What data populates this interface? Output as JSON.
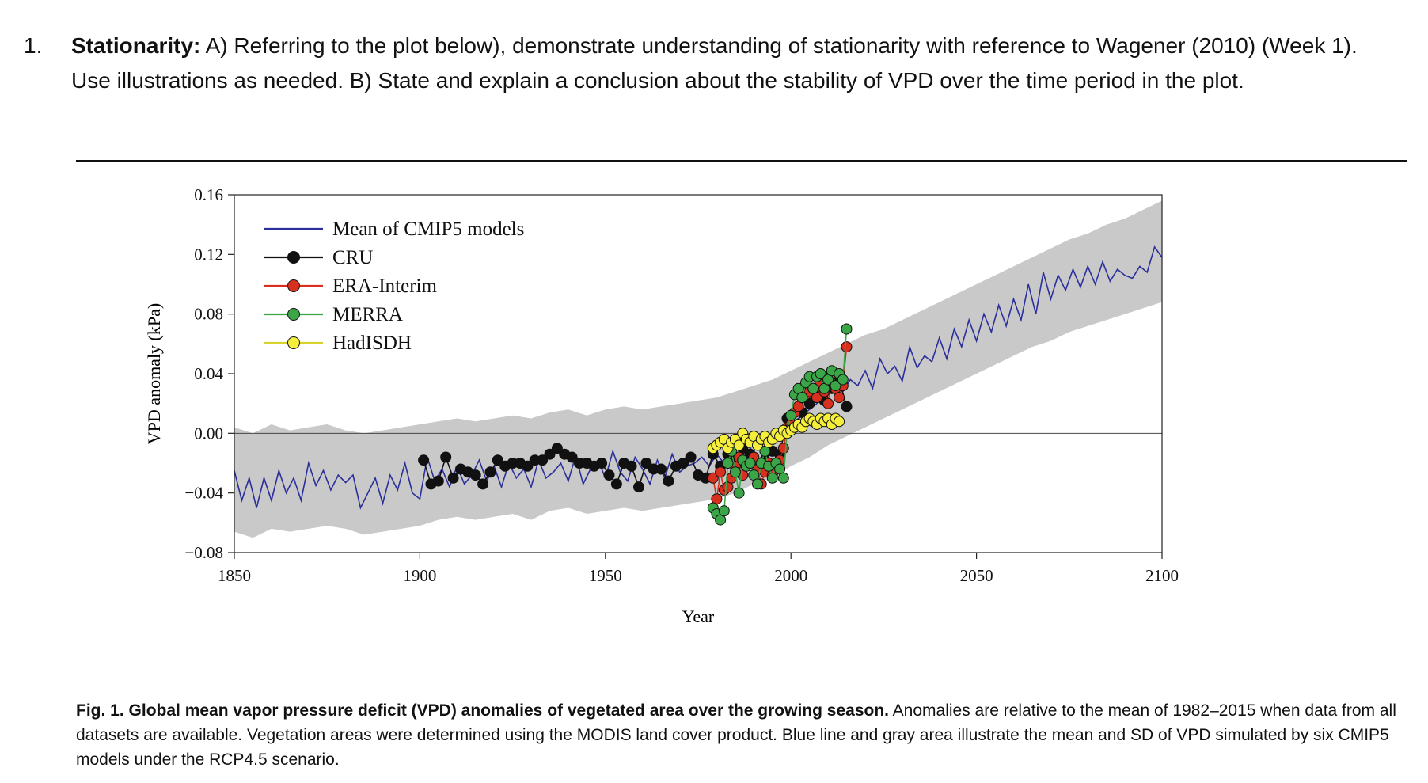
{
  "question": {
    "number": "1.",
    "heading": "Stationarity:",
    "text": " A) Referring to the plot below), demonstrate understanding of stationarity with reference to Wagener (2010) (Week 1). Use illustrations as needed. B) State and explain a conclusion about the stability of VPD over the time period in the plot."
  },
  "caption": {
    "label": "Fig. 1.",
    "title": "Global mean vapor pressure deficit (VPD) anomalies of vegetated area over the growing season.",
    "text": " Anomalies are relative to the mean of 1982–2015 when data from all datasets are available. Vegetation areas were determined using the MODIS land cover product. Blue line and gray area illustrate the mean and SD of VPD simulated by six CMIP5 models under the RCP4.5 scenario."
  },
  "colors": {
    "model_line": "#2b2f9b",
    "sd_band": "#c9c9c9",
    "cru": "#111111",
    "era": "#d7301f",
    "merra": "#3aa647",
    "hadisdh": "#f5ee3a"
  },
  "chart_data": {
    "type": "line",
    "title": "",
    "xlabel": "Year",
    "ylabel": "VPD anomaly (kPa)",
    "xlim": [
      1850,
      2100
    ],
    "ylim": [
      -0.08,
      0.16
    ],
    "xticks": [
      1850,
      1900,
      1950,
      2000,
      2050,
      2100
    ],
    "yticks": [
      -0.08,
      -0.04,
      0.0,
      0.04,
      0.08,
      0.12,
      0.16
    ],
    "ytick_labels": [
      "−0.08",
      "−0.04",
      "0.00",
      "0.04",
      "0.08",
      "0.12",
      "0.16"
    ],
    "zero_line": true,
    "legend": {
      "placement": "top-left"
    },
    "series": [
      {
        "name": "Mean of CMIP5 models",
        "style": "line",
        "color": "#2b2f9b",
        "x": [
          1850,
          1852,
          1854,
          1856,
          1858,
          1860,
          1862,
          1864,
          1866,
          1868,
          1870,
          1872,
          1874,
          1876,
          1878,
          1880,
          1882,
          1884,
          1886,
          1888,
          1890,
          1892,
          1894,
          1896,
          1898,
          1900,
          1902,
          1904,
          1906,
          1908,
          1910,
          1912,
          1914,
          1916,
          1918,
          1920,
          1922,
          1924,
          1926,
          1928,
          1930,
          1932,
          1934,
          1936,
          1938,
          1940,
          1942,
          1944,
          1946,
          1948,
          1950,
          1952,
          1954,
          1956,
          1958,
          1960,
          1962,
          1964,
          1966,
          1968,
          1970,
          1972,
          1974,
          1976,
          1978,
          1980,
          1982,
          1984,
          1986,
          1988,
          1990,
          1992,
          1994,
          1996,
          1998,
          2000,
          2002,
          2004,
          2006,
          2008,
          2010,
          2012,
          2014,
          2016,
          2018,
          2020,
          2022,
          2024,
          2026,
          2028,
          2030,
          2032,
          2034,
          2036,
          2038,
          2040,
          2042,
          2044,
          2046,
          2048,
          2050,
          2052,
          2054,
          2056,
          2058,
          2060,
          2062,
          2064,
          2066,
          2068,
          2070,
          2072,
          2074,
          2076,
          2078,
          2080,
          2082,
          2084,
          2086,
          2088,
          2090,
          2092,
          2094,
          2096,
          2098,
          2100
        ],
        "y": [
          -0.025,
          -0.045,
          -0.03,
          -0.05,
          -0.03,
          -0.045,
          -0.025,
          -0.04,
          -0.03,
          -0.045,
          -0.02,
          -0.035,
          -0.025,
          -0.038,
          -0.028,
          -0.033,
          -0.028,
          -0.05,
          -0.04,
          -0.03,
          -0.047,
          -0.028,
          -0.038,
          -0.02,
          -0.04,
          -0.044,
          -0.016,
          -0.032,
          -0.024,
          -0.036,
          -0.022,
          -0.034,
          -0.028,
          -0.018,
          -0.032,
          -0.022,
          -0.036,
          -0.02,
          -0.03,
          -0.024,
          -0.036,
          -0.018,
          -0.03,
          -0.026,
          -0.02,
          -0.032,
          -0.015,
          -0.034,
          -0.024,
          -0.018,
          -0.03,
          -0.012,
          -0.026,
          -0.032,
          -0.016,
          -0.024,
          -0.034,
          -0.018,
          -0.03,
          -0.014,
          -0.026,
          -0.022,
          -0.02,
          -0.016,
          -0.022,
          -0.014,
          -0.02,
          -0.01,
          -0.016,
          -0.008,
          -0.012,
          -0.006,
          -0.004,
          0.002,
          -0.002,
          0.006,
          0.01,
          0.014,
          0.018,
          0.022,
          0.026,
          0.03,
          0.028,
          0.036,
          0.032,
          0.042,
          0.03,
          0.05,
          0.04,
          0.045,
          0.035,
          0.058,
          0.044,
          0.052,
          0.048,
          0.064,
          0.05,
          0.07,
          0.058,
          0.076,
          0.062,
          0.08,
          0.068,
          0.086,
          0.072,
          0.09,
          0.076,
          0.1,
          0.08,
          0.108,
          0.09,
          0.106,
          0.096,
          0.11,
          0.098,
          0.112,
          0.1,
          0.115,
          0.102,
          0.11,
          0.106,
          0.104,
          0.112,
          0.108,
          0.125,
          0.118
        ]
      },
      {
        "name": "CRU",
        "style": "marker",
        "color": "#111111",
        "x": [
          1901,
          1903,
          1905,
          1907,
          1909,
          1911,
          1913,
          1915,
          1917,
          1919,
          1921,
          1923,
          1925,
          1927,
          1929,
          1931,
          1933,
          1935,
          1937,
          1939,
          1941,
          1943,
          1945,
          1947,
          1949,
          1951,
          1953,
          1955,
          1957,
          1959,
          1961,
          1963,
          1965,
          1967,
          1969,
          1971,
          1973,
          1975,
          1977,
          1979,
          1981,
          1983,
          1985,
          1987,
          1989,
          1991,
          1993,
          1995,
          1997,
          1999,
          2001,
          2003,
          2005,
          2007,
          2009,
          2011,
          2013,
          2015
        ],
        "y": [
          -0.018,
          -0.034,
          -0.032,
          -0.016,
          -0.03,
          -0.024,
          -0.026,
          -0.028,
          -0.034,
          -0.026,
          -0.018,
          -0.022,
          -0.02,
          -0.02,
          -0.022,
          -0.018,
          -0.018,
          -0.014,
          -0.01,
          -0.014,
          -0.016,
          -0.02,
          -0.02,
          -0.022,
          -0.02,
          -0.028,
          -0.034,
          -0.02,
          -0.022,
          -0.036,
          -0.02,
          -0.024,
          -0.024,
          -0.032,
          -0.022,
          -0.02,
          -0.016,
          -0.028,
          -0.03,
          -0.014,
          -0.022,
          -0.014,
          -0.016,
          -0.01,
          -0.014,
          -0.02,
          -0.018,
          -0.012,
          -0.014,
          0.01,
          0.004,
          0.014,
          0.02,
          0.028,
          0.022,
          0.03,
          0.036,
          0.018
        ]
      },
      {
        "name": "ERA-Interim",
        "style": "marker",
        "color": "#d7301f",
        "x": [
          1979,
          1980,
          1981,
          1982,
          1983,
          1984,
          1985,
          1986,
          1987,
          1988,
          1989,
          1990,
          1991,
          1992,
          1993,
          1994,
          1995,
          1996,
          1997,
          1998,
          1999,
          2000,
          2001,
          2002,
          2003,
          2004,
          2005,
          2006,
          2007,
          2008,
          2009,
          2010,
          2011,
          2012,
          2013,
          2014,
          2015
        ],
        "y": [
          -0.03,
          -0.044,
          -0.026,
          -0.038,
          -0.036,
          -0.03,
          -0.022,
          -0.016,
          -0.028,
          -0.02,
          -0.02,
          -0.016,
          -0.024,
          -0.034,
          -0.026,
          -0.02,
          -0.028,
          -0.022,
          -0.018,
          -0.01,
          0.004,
          0.006,
          0.014,
          0.018,
          0.024,
          0.026,
          0.028,
          0.03,
          0.024,
          0.034,
          0.028,
          0.02,
          0.04,
          0.03,
          0.024,
          0.032,
          0.058
        ]
      },
      {
        "name": "MERRA",
        "style": "marker",
        "color": "#3aa647",
        "x": [
          1979,
          1980,
          1981,
          1982,
          1983,
          1984,
          1985,
          1986,
          1987,
          1988,
          1989,
          1990,
          1991,
          1992,
          1993,
          1994,
          1995,
          1996,
          1997,
          1998,
          1999,
          2000,
          2001,
          2002,
          2003,
          2004,
          2005,
          2006,
          2007,
          2008,
          2009,
          2010,
          2011,
          2012,
          2013,
          2014,
          2015
        ],
        "y": [
          -0.05,
          -0.054,
          -0.058,
          -0.052,
          -0.02,
          -0.012,
          -0.026,
          -0.04,
          -0.018,
          -0.022,
          -0.02,
          -0.028,
          -0.034,
          -0.02,
          -0.012,
          -0.022,
          -0.03,
          -0.02,
          -0.024,
          -0.03,
          0.002,
          0.012,
          0.026,
          0.03,
          0.024,
          0.034,
          0.038,
          0.03,
          0.038,
          0.04,
          0.03,
          0.036,
          0.042,
          0.032,
          0.04,
          0.036,
          0.07
        ]
      },
      {
        "name": "HadISDH",
        "style": "marker",
        "color": "#f5ee3a",
        "x": [
          1979,
          1980,
          1981,
          1982,
          1983,
          1984,
          1985,
          1986,
          1987,
          1988,
          1989,
          1990,
          1991,
          1992,
          1993,
          1994,
          1995,
          1996,
          1997,
          1998,
          1999,
          2000,
          2001,
          2002,
          2003,
          2004,
          2005,
          2006,
          2007,
          2008,
          2009,
          2010,
          2011,
          2012,
          2013
        ],
        "y": [
          -0.01,
          -0.008,
          -0.006,
          -0.004,
          -0.01,
          -0.006,
          -0.004,
          -0.008,
          0.0,
          -0.004,
          -0.006,
          -0.002,
          -0.008,
          -0.004,
          -0.002,
          -0.006,
          -0.004,
          0.0,
          -0.002,
          0.002,
          0.0,
          0.002,
          0.004,
          0.006,
          0.004,
          0.008,
          0.01,
          0.008,
          0.006,
          0.01,
          0.008,
          0.01,
          0.006,
          0.01,
          0.008
        ]
      }
    ],
    "band": {
      "name": "SD of CMIP5 models",
      "color": "#c9c9c9",
      "x": [
        1850,
        1855,
        1860,
        1865,
        1870,
        1875,
        1880,
        1885,
        1890,
        1895,
        1900,
        1905,
        1910,
        1915,
        1920,
        1925,
        1930,
        1935,
        1940,
        1945,
        1950,
        1955,
        1960,
        1965,
        1970,
        1975,
        1980,
        1985,
        1990,
        1995,
        2000,
        2005,
        2010,
        2015,
        2020,
        2025,
        2030,
        2035,
        2040,
        2045,
        2050,
        2055,
        2060,
        2065,
        2070,
        2075,
        2080,
        2085,
        2090,
        2095,
        2100
      ],
      "lower": [
        -0.066,
        -0.07,
        -0.064,
        -0.066,
        -0.064,
        -0.062,
        -0.064,
        -0.068,
        -0.066,
        -0.064,
        -0.062,
        -0.058,
        -0.056,
        -0.058,
        -0.056,
        -0.054,
        -0.058,
        -0.052,
        -0.05,
        -0.054,
        -0.052,
        -0.05,
        -0.052,
        -0.05,
        -0.048,
        -0.046,
        -0.044,
        -0.04,
        -0.034,
        -0.03,
        -0.022,
        -0.016,
        -0.008,
        -0.002,
        0.004,
        0.01,
        0.016,
        0.022,
        0.028,
        0.034,
        0.04,
        0.046,
        0.052,
        0.058,
        0.062,
        0.068,
        0.072,
        0.076,
        0.08,
        0.084,
        0.088
      ],
      "upper": [
        0.004,
        0.0,
        0.006,
        0.002,
        0.004,
        0.006,
        0.002,
        0.0,
        0.002,
        0.004,
        0.006,
        0.008,
        0.01,
        0.008,
        0.01,
        0.012,
        0.01,
        0.014,
        0.016,
        0.012,
        0.016,
        0.018,
        0.016,
        0.018,
        0.02,
        0.022,
        0.024,
        0.028,
        0.032,
        0.036,
        0.042,
        0.048,
        0.054,
        0.06,
        0.066,
        0.07,
        0.076,
        0.082,
        0.088,
        0.094,
        0.1,
        0.106,
        0.112,
        0.118,
        0.124,
        0.13,
        0.134,
        0.14,
        0.144,
        0.15,
        0.156
      ]
    }
  }
}
